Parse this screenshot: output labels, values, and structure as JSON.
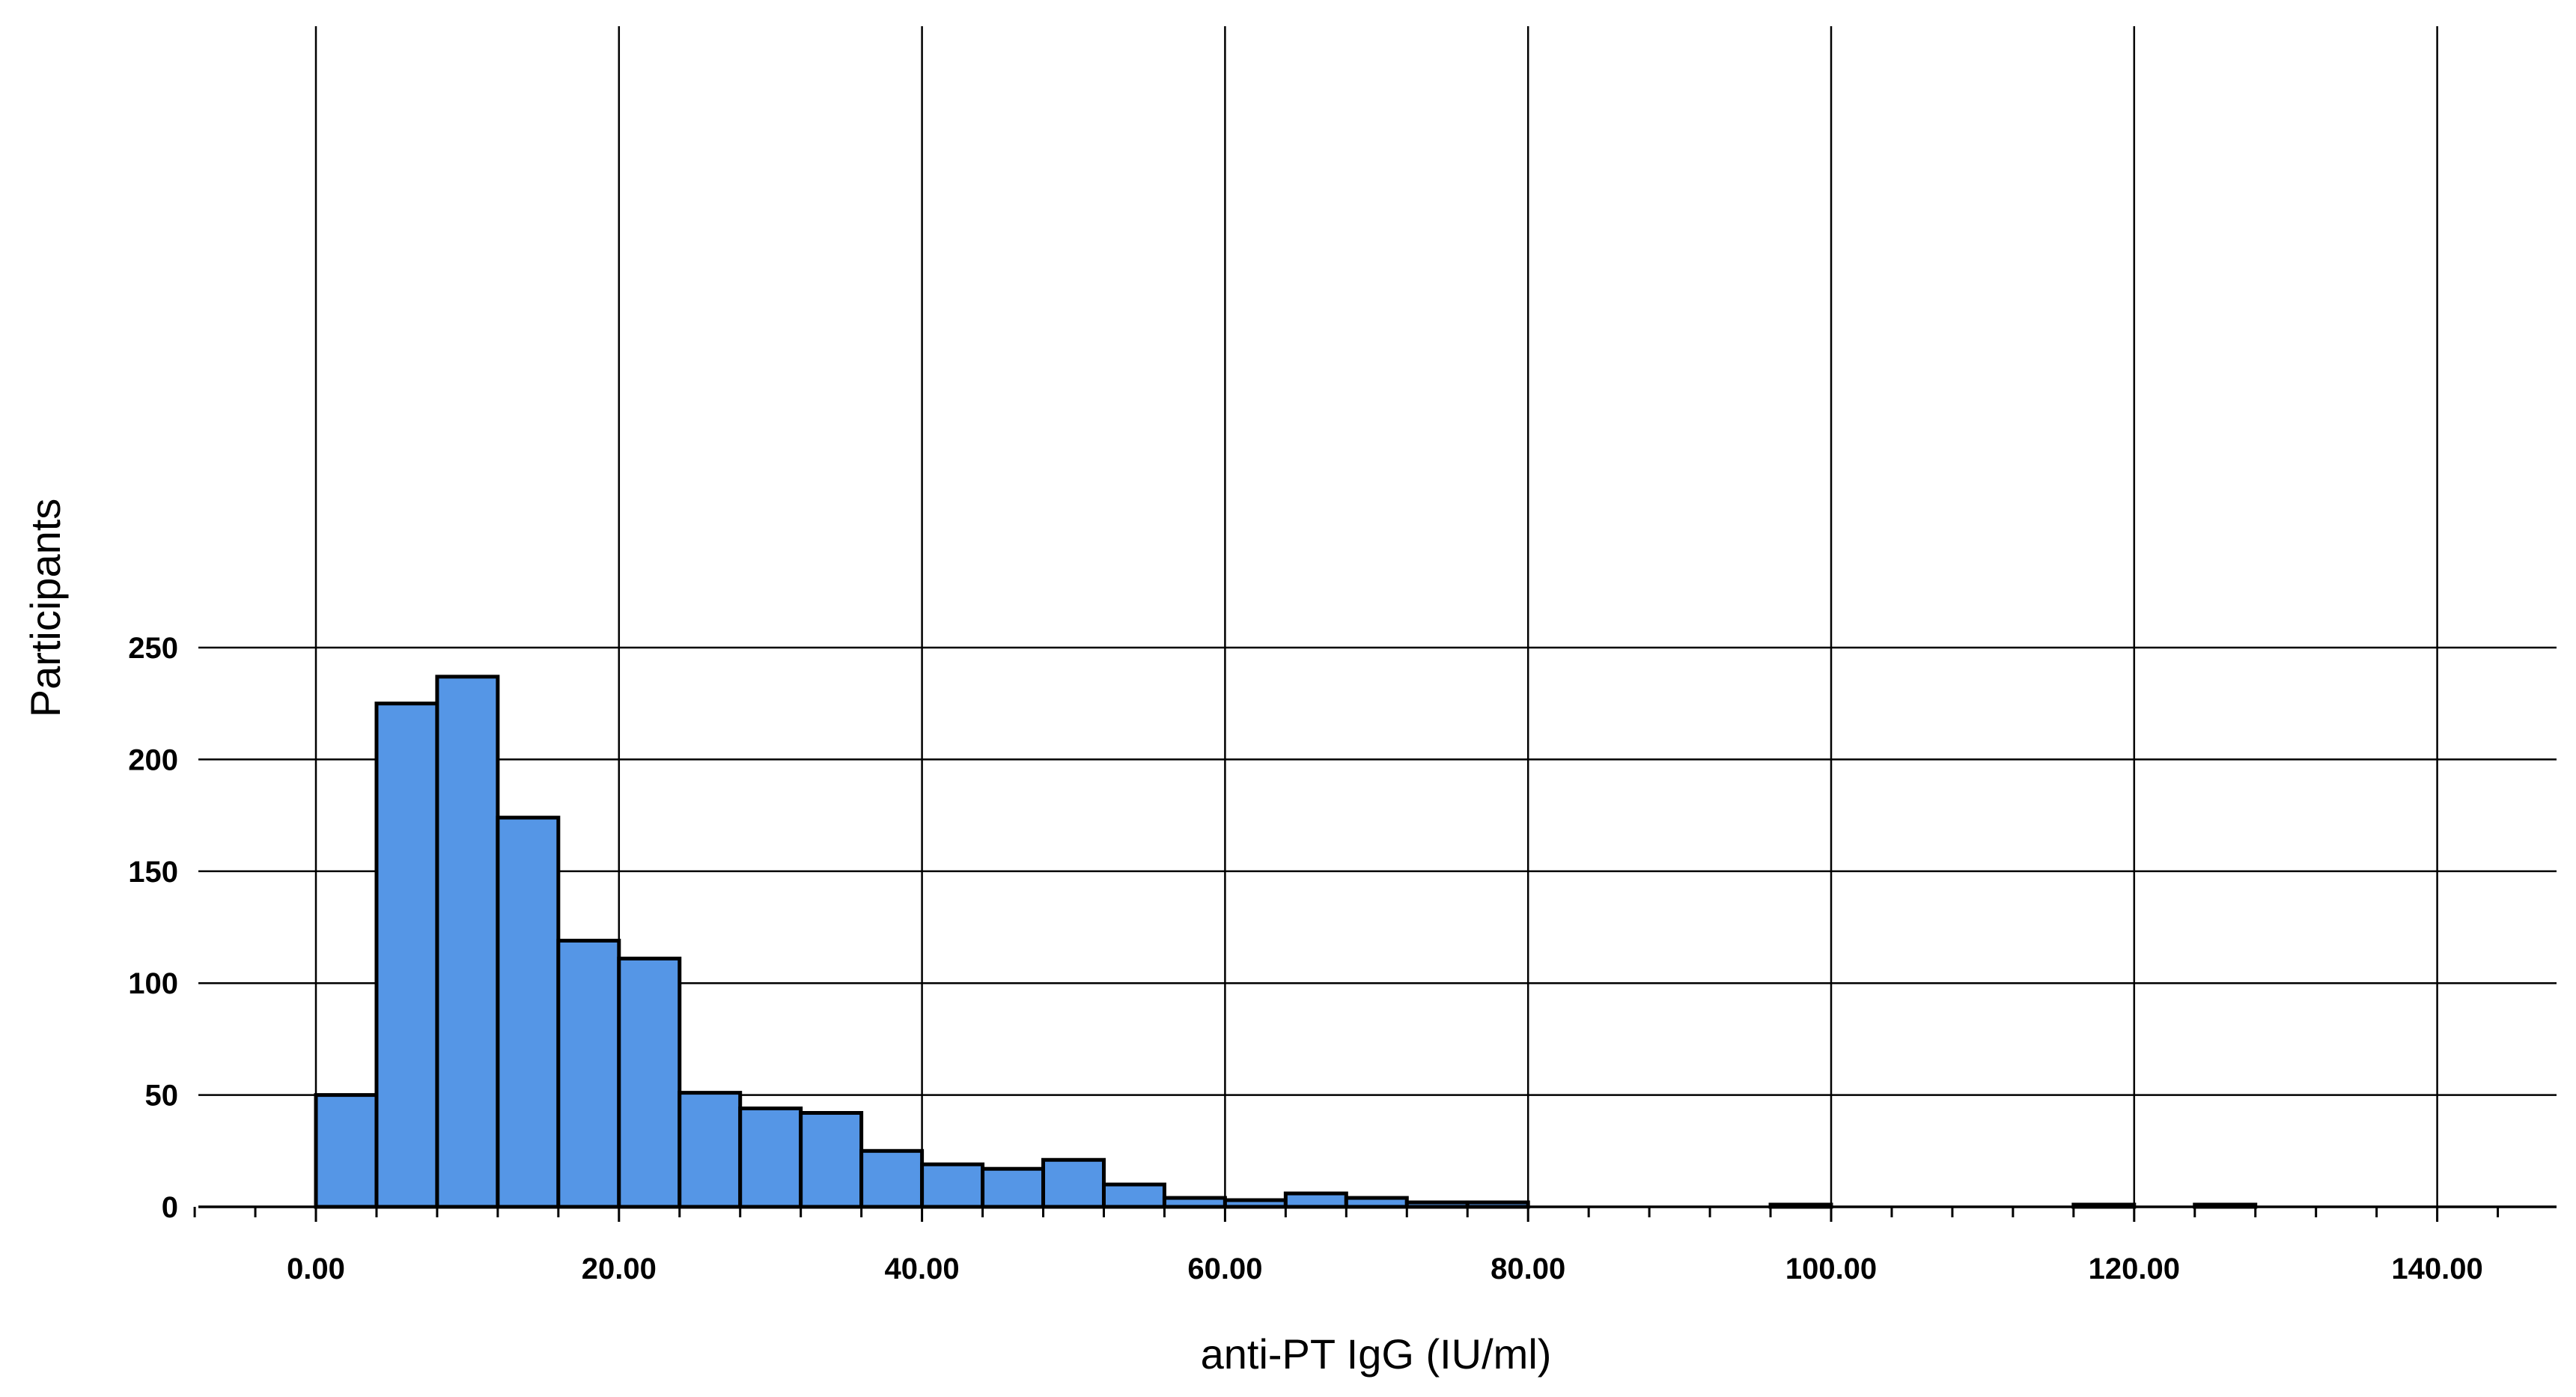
{
  "chart_data": {
    "type": "bar",
    "subtype": "histogram",
    "xlabel": "anti-PT IgG (IU/ml)",
    "ylabel": "Participants",
    "xlim": [
      -8,
      145
    ],
    "ylim": [
      0,
      262
    ],
    "x_ticks": [
      0,
      20,
      40,
      60,
      80,
      100,
      120,
      140
    ],
    "x_tick_labels": [
      "0.00",
      "20.00",
      "40.00",
      "60.00",
      "80.00",
      "100.00",
      "120.00",
      "140.00"
    ],
    "y_ticks": [
      0,
      50,
      100,
      150,
      200,
      250
    ],
    "y_tick_labels": [
      "0",
      "50",
      "100",
      "150",
      "200",
      "250"
    ],
    "x_minor_step": 4,
    "grid": true,
    "legend": "none",
    "bar_color": "#5596e6",
    "edge_color": "#000000",
    "bins": [
      {
        "start": 0,
        "end": 4,
        "value": 50
      },
      {
        "start": 4,
        "end": 8,
        "value": 225
      },
      {
        "start": 8,
        "end": 12,
        "value": 237
      },
      {
        "start": 12,
        "end": 16,
        "value": 174
      },
      {
        "start": 16,
        "end": 20,
        "value": 119
      },
      {
        "start": 20,
        "end": 24,
        "value": 111
      },
      {
        "start": 24,
        "end": 28,
        "value": 51
      },
      {
        "start": 28,
        "end": 32,
        "value": 44
      },
      {
        "start": 32,
        "end": 36,
        "value": 42
      },
      {
        "start": 36,
        "end": 40,
        "value": 25
      },
      {
        "start": 40,
        "end": 44,
        "value": 19
      },
      {
        "start": 44,
        "end": 48,
        "value": 17
      },
      {
        "start": 48,
        "end": 52,
        "value": 21
      },
      {
        "start": 52,
        "end": 56,
        "value": 10
      },
      {
        "start": 56,
        "end": 60,
        "value": 4
      },
      {
        "start": 60,
        "end": 64,
        "value": 3
      },
      {
        "start": 64,
        "end": 68,
        "value": 6
      },
      {
        "start": 68,
        "end": 72,
        "value": 4
      },
      {
        "start": 72,
        "end": 76,
        "value": 2
      },
      {
        "start": 76,
        "end": 80,
        "value": 2
      },
      {
        "start": 96,
        "end": 100,
        "value": 1
      },
      {
        "start": 116,
        "end": 120,
        "value": 1
      },
      {
        "start": 124,
        "end": 128,
        "value": 1
      }
    ]
  }
}
